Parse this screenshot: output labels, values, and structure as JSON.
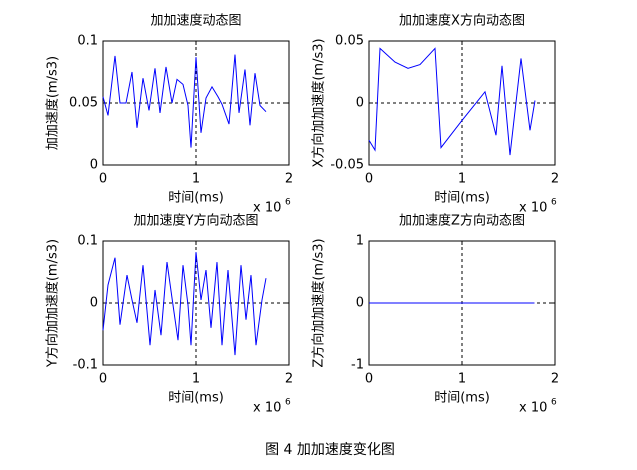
{
  "chart_data": [
    {
      "type": "line",
      "title": "加加速度动态图",
      "xlabel": "时间(ms)",
      "ylabel": "加加速度(m/s3)",
      "x_scale": "x 10",
      "x_scale_power": "6",
      "color": "#0000ff",
      "xlim": [
        0,
        2
      ],
      "xticks": [
        0,
        1,
        2
      ],
      "ylim": [
        0,
        0.1
      ],
      "yticks": [
        0,
        0.05,
        0.1
      ],
      "ref_x": 1,
      "ref_y": 0.05,
      "x": [
        0,
        0.054,
        0.129,
        0.183,
        0.247,
        0.312,
        0.366,
        0.43,
        0.495,
        0.559,
        0.613,
        0.677,
        0.742,
        0.796,
        0.86,
        0.914,
        0.946,
        1.0,
        1.054,
        1.108,
        1.172,
        1.237,
        1.28,
        1.355,
        1.419,
        1.462,
        1.527,
        1.581,
        1.634,
        1.688,
        1.753
      ],
      "values": [
        0.055,
        0.04,
        0.088,
        0.05,
        0.05,
        0.075,
        0.03,
        0.07,
        0.044,
        0.078,
        0.042,
        0.079,
        0.05,
        0.069,
        0.065,
        0.048,
        0.014,
        0.087,
        0.026,
        0.054,
        0.063,
        0.055,
        0.049,
        0.033,
        0.089,
        0.042,
        0.077,
        0.032,
        0.074,
        0.048,
        0.043
      ]
    },
    {
      "type": "line",
      "title": "加加速度X方向动态图",
      "xlabel": "时间(ms)",
      "ylabel": "X方向加加速度(m/s3)",
      "x_scale": "x 10",
      "x_scale_power": "6",
      "color": "#0000ff",
      "xlim": [
        0,
        2
      ],
      "xticks": [
        0,
        1,
        2
      ],
      "ylim": [
        -0.05,
        0.05
      ],
      "yticks": [
        -0.05,
        0,
        0.05
      ],
      "ref_x": 1,
      "ref_y": 0,
      "x": [
        0,
        0.065,
        0.118,
        0.28,
        0.419,
        0.548,
        0.71,
        0.774,
        1.0,
        1.247,
        1.366,
        1.43,
        1.516,
        1.634,
        1.731,
        1.785
      ],
      "values": [
        -0.03,
        -0.038,
        0.044,
        0.033,
        0.028,
        0.031,
        0.044,
        -0.036,
        -0.014,
        0.009,
        -0.026,
        0.03,
        -0.042,
        0.036,
        -0.022,
        0.002
      ]
    },
    {
      "type": "line",
      "title": "加加速度Y方向动态图",
      "xlabel": "时间(ms)",
      "ylabel": "Y方向加加速度(m/s3)",
      "x_scale": "x 10",
      "x_scale_power": "6",
      "color": "#0000ff",
      "xlim": [
        0,
        2
      ],
      "xticks": [
        0,
        1,
        2
      ],
      "ylim": [
        -0.1,
        0.1
      ],
      "yticks": [
        -0.1,
        0,
        0.1
      ],
      "ref_x": 1,
      "ref_y": 0,
      "x": [
        0,
        0.054,
        0.129,
        0.183,
        0.258,
        0.312,
        0.366,
        0.43,
        0.505,
        0.559,
        0.624,
        0.688,
        0.742,
        0.806,
        0.86,
        0.914,
        0.946,
        1.0,
        1.054,
        1.108,
        1.161,
        1.226,
        1.28,
        1.344,
        1.419,
        1.484,
        1.538,
        1.591,
        1.645,
        1.71,
        1.753
      ],
      "values": [
        -0.044,
        0.029,
        0.073,
        -0.035,
        0.045,
        0.005,
        -0.032,
        0.061,
        -0.068,
        0.021,
        -0.052,
        0.066,
        0.008,
        -0.06,
        0.061,
        -0.003,
        -0.068,
        0.082,
        0.005,
        0.053,
        -0.04,
        0.066,
        -0.068,
        0.053,
        -0.084,
        0.061,
        -0.027,
        0.045,
        -0.068,
        0.005,
        0.04
      ]
    },
    {
      "type": "line",
      "title": "加加速度Z方向动态图",
      "xlabel": "时间(ms)",
      "ylabel": "Z方向加加速度(m/s3)",
      "x_scale": "x 10",
      "x_scale_power": "6",
      "color": "#0000ff",
      "xlim": [
        0,
        2
      ],
      "xticks": [
        0,
        1,
        2
      ],
      "ylim": [
        -1,
        1
      ],
      "yticks": [
        -1,
        0,
        1
      ],
      "ref_x": 1,
      "ref_y": 0,
      "x": [
        0,
        0.9,
        1.78
      ],
      "values": [
        0,
        0,
        0
      ]
    }
  ],
  "caption": "图 4  加加速度变化图"
}
